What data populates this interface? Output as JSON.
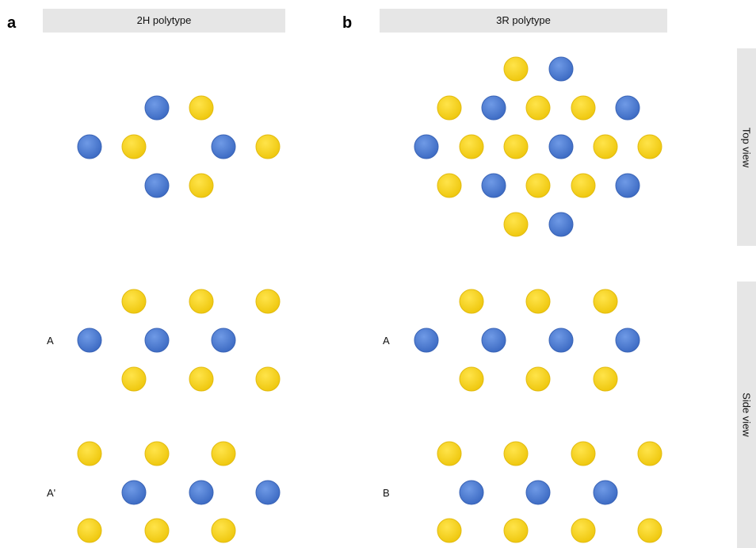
{
  "panels": {
    "a": {
      "letter": "a",
      "title": "2H polytype",
      "layer_labels": [
        "A",
        "A'"
      ]
    },
    "b": {
      "letter": "b",
      "title": "3R polytype",
      "layer_labels": [
        "A",
        "B"
      ]
    }
  },
  "side_labels": {
    "top": "Top view",
    "side": "Side view"
  },
  "colors": {
    "metal": "#4a79d0",
    "chalcogen": "#f4d11c",
    "bar": "#e6e6e6"
  },
  "atom_types": [
    "metal",
    "chalcogen"
  ]
}
